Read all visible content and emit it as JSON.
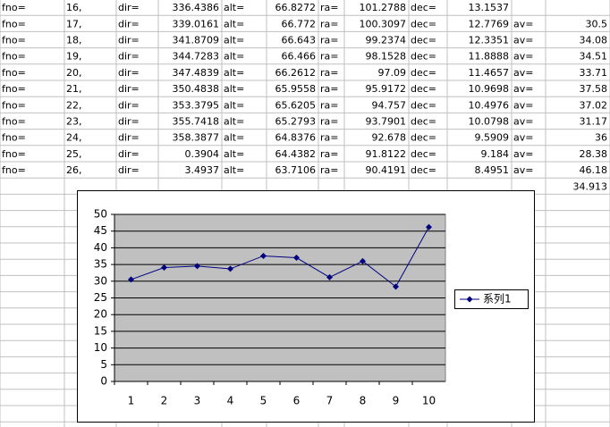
{
  "table": {
    "rows": [
      [
        "fno=",
        "16,",
        "dir=",
        "336.4386",
        "alt=",
        "66.8272",
        "ra=",
        "101.2788",
        "dec=",
        "13.1537",
        null,
        null
      ],
      [
        "fno=",
        "17,",
        "dir=",
        "339.0161",
        "alt=",
        "66.772",
        "ra=",
        "100.3097",
        "dec=",
        "12.7769",
        "av=",
        "30.5"
      ],
      [
        "fno=",
        "18,",
        "dir=",
        "341.8709",
        "alt=",
        "66.643",
        "ra=",
        "99.2374",
        "dec=",
        "12.3351",
        "av=",
        "34.08"
      ],
      [
        "fno=",
        "19,",
        "dir=",
        "344.7283",
        "alt=",
        "66.466",
        "ra=",
        "98.1528",
        "dec=",
        "11.8888",
        "av=",
        "34.51"
      ],
      [
        "fno=",
        "20,",
        "dir=",
        "347.4839",
        "alt=",
        "66.2612",
        "ra=",
        "97.09",
        "dec=",
        "11.4657",
        "av=",
        "33.71"
      ],
      [
        "fno=",
        "21,",
        "dir=",
        "350.4838",
        "alt=",
        "65.9558",
        "ra=",
        "95.9172",
        "dec=",
        "10.9698",
        "av=",
        "37.58"
      ],
      [
        "fno=",
        "22,",
        "dir=",
        "353.3795",
        "alt=",
        "65.6205",
        "ra=",
        "94.757",
        "dec=",
        "10.4976",
        "av=",
        "37.02"
      ],
      [
        "fno=",
        "23,",
        "dir=",
        "355.7418",
        "alt=",
        "65.2793",
        "ra=",
        "93.7901",
        "dec=",
        "10.0798",
        "av=",
        "31.17"
      ],
      [
        "fno=",
        "24,",
        "dir=",
        "358.3877",
        "alt=",
        "64.8376",
        "ra=",
        "92.678",
        "dec=",
        "9.5909",
        "av=",
        "36"
      ],
      [
        "fno=",
        "25,",
        "dir=",
        "0.3904",
        "alt=",
        "64.4382",
        "ra=",
        "91.8122",
        "dec=",
        "9.184",
        "av=",
        "28.38"
      ],
      [
        "fno=",
        "26,",
        "dir=",
        "3.4937",
        "alt=",
        "63.7106",
        "ra=",
        "90.4191",
        "dec=",
        "8.4951",
        "av=",
        "46.18"
      ],
      [
        null,
        null,
        null,
        null,
        null,
        null,
        null,
        null,
        null,
        null,
        null,
        "34.913"
      ]
    ]
  },
  "chart_data": {
    "type": "line",
    "categories": [
      "1",
      "2",
      "3",
      "4",
      "5",
      "6",
      "7",
      "8",
      "9",
      "10"
    ],
    "series": [
      {
        "name": "系列1",
        "color": "#000080",
        "values": [
          30.5,
          34.08,
          34.51,
          33.71,
          37.58,
          37.02,
          31.17,
          36,
          28.38,
          46.18
        ]
      }
    ],
    "ylim": [
      0,
      50
    ],
    "yticks": [
      0,
      5,
      10,
      15,
      20,
      25,
      30,
      35,
      40,
      45,
      50
    ],
    "grid": true,
    "plot_background": "#c0c0c0",
    "legend": "right"
  }
}
